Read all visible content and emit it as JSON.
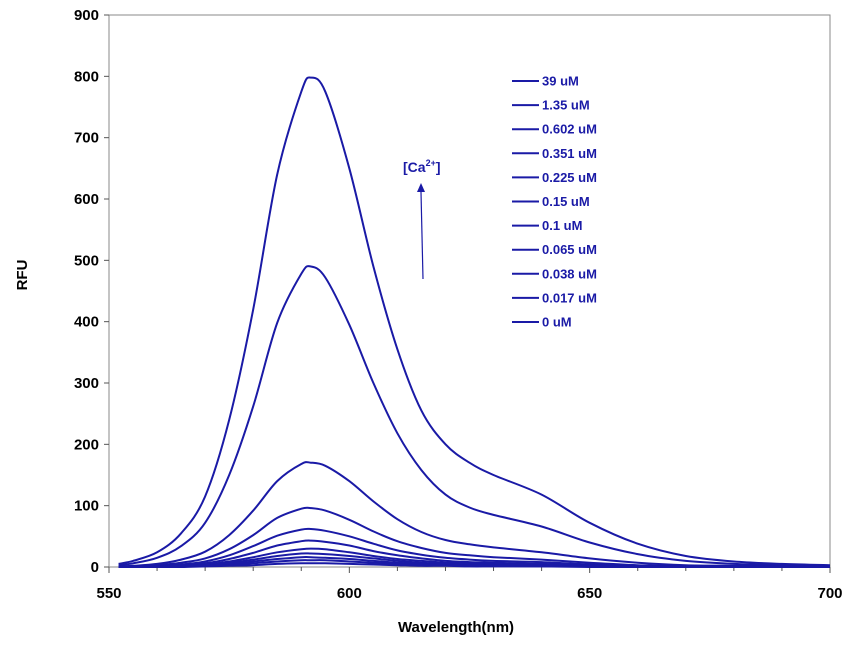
{
  "chart_data": {
    "type": "line",
    "title": "",
    "xlabel": "Wavelength(nm)",
    "ylabel": "RFU",
    "xlim": [
      550,
      700
    ],
    "ylim": [
      0,
      900
    ],
    "x_ticks": [
      550,
      600,
      650,
      700
    ],
    "y_ticks": [
      0,
      100,
      200,
      300,
      400,
      500,
      600,
      700,
      800,
      900
    ],
    "x_tick_labels": [
      "550",
      "600",
      "650",
      "700"
    ],
    "y_tick_labels": [
      "0",
      "100",
      "200",
      "300",
      "400",
      "500",
      "600",
      "700",
      "800",
      "900"
    ],
    "grid": false,
    "legend_position": "top-right-inside",
    "line_color": "#1a1aa6",
    "annotation": {
      "text_prefix": "[Ca",
      "superscript": "2+",
      "text_suffix": "]",
      "arrow_direction": "up"
    },
    "x": [
      552,
      555,
      560,
      565,
      570,
      575,
      580,
      585,
      590,
      592,
      595,
      600,
      605,
      610,
      615,
      620,
      625,
      630,
      640,
      650,
      660,
      670,
      680,
      690,
      700
    ],
    "series": [
      {
        "name": "39 uM",
        "values": [
          5,
          10,
          24,
          55,
          115,
          240,
          420,
          640,
          775,
          798,
          775,
          650,
          490,
          355,
          255,
          200,
          170,
          150,
          118,
          72,
          38,
          18,
          9,
          5,
          3
        ]
      },
      {
        "name": "1.35 uM",
        "values": [
          3,
          6,
          15,
          34,
          72,
          150,
          262,
          398,
          478,
          490,
          472,
          395,
          300,
          218,
          158,
          118,
          97,
          85,
          66,
          40,
          21,
          10,
          5,
          3,
          2
        ]
      },
      {
        "name": "0.602 uM",
        "values": [
          1,
          2,
          5,
          12,
          25,
          52,
          92,
          140,
          168,
          170,
          165,
          140,
          107,
          78,
          57,
          44,
          37,
          32,
          24,
          14,
          7,
          3,
          2,
          1,
          1
        ]
      },
      {
        "name": "0.351 uM",
        "values": [
          1,
          1,
          3,
          7,
          14,
          29,
          52,
          80,
          95,
          96,
          92,
          77,
          58,
          42,
          31,
          23,
          19,
          16,
          12,
          7,
          3,
          2,
          1,
          1,
          0
        ]
      },
      {
        "name": "0.225 uM",
        "values": [
          0,
          1,
          2,
          4,
          9,
          19,
          34,
          51,
          61,
          62,
          59,
          50,
          38,
          27,
          20,
          15,
          12,
          10,
          8,
          4,
          2,
          1,
          1,
          0,
          0
        ]
      },
      {
        "name": "0.15 uM",
        "values": [
          0,
          0,
          1,
          3,
          6,
          13,
          23,
          35,
          42,
          43,
          41,
          35,
          26,
          19,
          14,
          10,
          8,
          7,
          5,
          3,
          1,
          1,
          0,
          0,
          0
        ]
      },
      {
        "name": "0.1 uM",
        "values": [
          0,
          0,
          1,
          2,
          4,
          9,
          16,
          24,
          29,
          30,
          29,
          24,
          18,
          13,
          10,
          7,
          6,
          5,
          4,
          2,
          1,
          1,
          0,
          0,
          0
        ]
      },
      {
        "name": "0.065 uM",
        "values": [
          0,
          0,
          1,
          2,
          3,
          7,
          12,
          18,
          22,
          22,
          21,
          18,
          14,
          10,
          7,
          5,
          4,
          4,
          3,
          2,
          1,
          0,
          0,
          0,
          0
        ]
      },
      {
        "name": "0.038 uM",
        "values": [
          0,
          0,
          0,
          1,
          2,
          5,
          9,
          13,
          16,
          16,
          15,
          13,
          10,
          7,
          5,
          4,
          3,
          3,
          2,
          1,
          1,
          0,
          0,
          0,
          0
        ]
      },
      {
        "name": "0.017 uM",
        "values": [
          0,
          0,
          0,
          1,
          2,
          3,
          6,
          9,
          11,
          11,
          11,
          9,
          7,
          5,
          4,
          3,
          2,
          2,
          1,
          1,
          0,
          0,
          0,
          0,
          0
        ]
      },
      {
        "name": "0 uM",
        "values": [
          0,
          0,
          0,
          0,
          1,
          2,
          3,
          5,
          6,
          6,
          6,
          5,
          4,
          3,
          2,
          2,
          1,
          1,
          1,
          0,
          0,
          0,
          0,
          0,
          0
        ]
      }
    ]
  }
}
